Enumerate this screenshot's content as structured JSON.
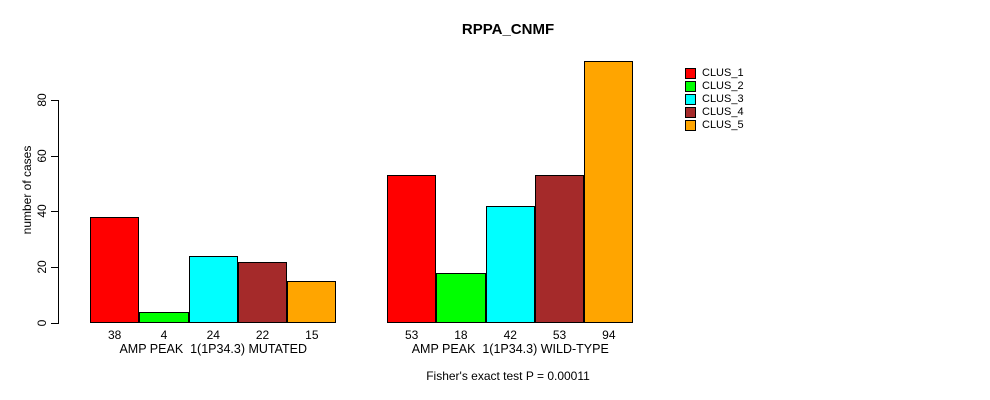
{
  "title": "RPPA_CNMF",
  "chart_data": {
    "type": "bar",
    "title": "RPPA_CNMF",
    "ylabel": "number of cases",
    "xlabel": "",
    "ylim": [
      0,
      97
    ],
    "yticks": [
      0,
      20,
      40,
      60,
      80
    ],
    "grid": false,
    "legend_position": "top-right-outside",
    "categories": [
      "AMP PEAK  1(1P34.3) MUTATED",
      "AMP PEAK  1(1P34.3) WILD-TYPE"
    ],
    "series": [
      {
        "name": "CLUS_1",
        "color": "#FF0000",
        "values": [
          38,
          53
        ]
      },
      {
        "name": "CLUS_2",
        "color": "#00FF00",
        "values": [
          4,
          18
        ]
      },
      {
        "name": "CLUS_3",
        "color": "#00FFFF",
        "values": [
          24,
          42
        ]
      },
      {
        "name": "CLUS_4",
        "color": "#A52A2A",
        "values": [
          22,
          53
        ]
      },
      {
        "name": "CLUS_5",
        "color": "#FFA500",
        "values": [
          15,
          94
        ]
      }
    ],
    "bar_value_labels": [
      [
        38,
        4,
        24,
        22,
        15
      ],
      [
        53,
        18,
        42,
        53,
        94
      ]
    ],
    "caption": "Fisher's exact test P = 0.00011"
  }
}
